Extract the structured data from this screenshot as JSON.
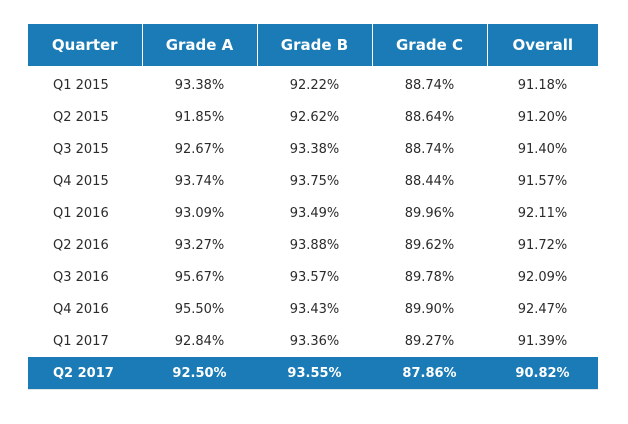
{
  "table": {
    "headers": [
      "Quarter",
      "Grade A",
      "Grade B",
      "Grade C",
      "Overall"
    ],
    "rows": [
      [
        "Q1 2015",
        "93.38%",
        "92.22%",
        "88.74%",
        "91.18%"
      ],
      [
        "Q2 2015",
        "91.85%",
        "92.62%",
        "88.64%",
        "91.20%"
      ],
      [
        "Q3 2015",
        "92.67%",
        "93.38%",
        "88.74%",
        "91.40%"
      ],
      [
        "Q4 2015",
        "93.74%",
        "93.75%",
        "88.44%",
        "91.57%"
      ],
      [
        "Q1 2016",
        "93.09%",
        "93.49%",
        "89.96%",
        "92.11%"
      ],
      [
        "Q2 2016",
        "93.27%",
        "93.88%",
        "89.62%",
        "91.72%"
      ],
      [
        "Q3 2016",
        "95.67%",
        "93.57%",
        "89.78%",
        "92.09%"
      ],
      [
        "Q4 2016",
        "95.50%",
        "93.43%",
        "89.90%",
        "92.47%"
      ],
      [
        "Q1 2017",
        "92.84%",
        "93.36%",
        "89.27%",
        "91.39%"
      ],
      [
        "Q2 2017",
        "92.50%",
        "93.55%",
        "87.86%",
        "90.82%"
      ]
    ],
    "highlight_row": 9
  },
  "colors": {
    "header_bg": "#1a7bb6",
    "header_text": "#ffffff",
    "body_text": "#2b2b2b"
  }
}
